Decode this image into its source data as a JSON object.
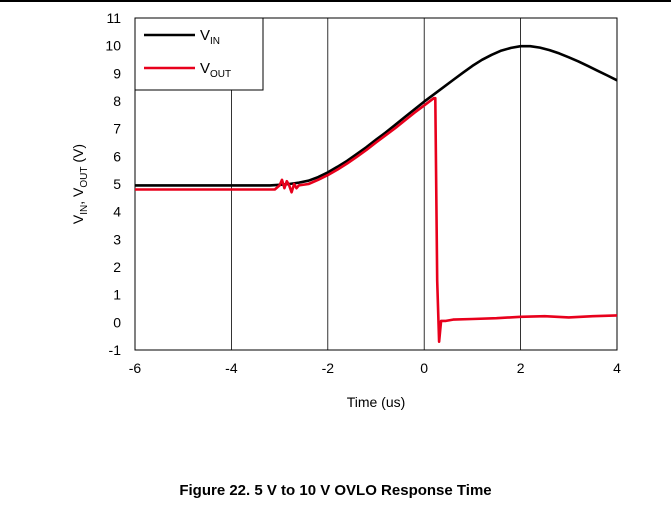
{
  "chart_data": {
    "type": "line",
    "xlabel": "Time (us)",
    "ylabel_parts": [
      {
        "text": "V",
        "sub": false
      },
      {
        "text": "IN",
        "sub": true
      },
      {
        "text": ", V",
        "sub": false
      },
      {
        "text": "OUT",
        "sub": true
      },
      {
        "text": " (V)",
        "sub": false
      }
    ],
    "xlim": [
      -6,
      4
    ],
    "ylim": [
      -1,
      11
    ],
    "xticks": [
      "-6",
      "-4",
      "-2",
      "0",
      "2",
      "4"
    ],
    "yticks": [
      "-1",
      "0",
      "1",
      "2",
      "3",
      "4",
      "5",
      "6",
      "7",
      "8",
      "9",
      "10",
      "11"
    ],
    "grid": "vertical",
    "legend_position": "top-left",
    "series": [
      {
        "name_main": "V",
        "name_sub": "IN",
        "color": "#000000",
        "x": [
          -6,
          -3.2,
          -3.0,
          -2.8,
          -2.6,
          -2.4,
          -2.2,
          -2.0,
          -1.8,
          -1.6,
          -1.4,
          -1.2,
          -1.0,
          -0.8,
          -0.6,
          -0.4,
          -0.2,
          0.0,
          0.2,
          0.4,
          0.6,
          0.8,
          1.0,
          1.2,
          1.4,
          1.6,
          1.8,
          2.0,
          2.2,
          2.4,
          2.6,
          2.8,
          3.0,
          3.2,
          3.4,
          3.6,
          3.8,
          4.0
        ],
        "y": [
          4.95,
          4.95,
          4.97,
          5.0,
          5.05,
          5.12,
          5.25,
          5.42,
          5.62,
          5.84,
          6.08,
          6.33,
          6.6,
          6.86,
          7.14,
          7.42,
          7.7,
          7.98,
          8.24,
          8.5,
          8.76,
          9.02,
          9.27,
          9.49,
          9.67,
          9.82,
          9.92,
          9.98,
          9.98,
          9.93,
          9.84,
          9.72,
          9.58,
          9.43,
          9.26,
          9.09,
          8.92,
          8.75
        ]
      },
      {
        "name_main": "V",
        "name_sub": "OUT",
        "color": "#e8001c",
        "x": [
          -6,
          -3.1,
          -3.0,
          -2.95,
          -2.9,
          -2.85,
          -2.8,
          -2.75,
          -2.7,
          -2.65,
          -2.6,
          -2.4,
          -2.2,
          -2.0,
          -1.8,
          -1.6,
          -1.4,
          -1.2,
          -1.0,
          -0.8,
          -0.6,
          -0.4,
          -0.2,
          0.0,
          0.2,
          0.23,
          0.27,
          0.31,
          0.35,
          0.45,
          0.6,
          1.0,
          1.5,
          2.0,
          2.5,
          3.0,
          3.5,
          4.0
        ],
        "y": [
          4.8,
          4.8,
          4.95,
          5.15,
          4.85,
          5.1,
          4.95,
          4.7,
          5.0,
          4.85,
          4.95,
          5.0,
          5.15,
          5.32,
          5.52,
          5.74,
          5.98,
          6.23,
          6.5,
          6.76,
          7.02,
          7.3,
          7.58,
          7.84,
          8.1,
          8.1,
          1.5,
          -0.7,
          0.05,
          0.05,
          0.1,
          0.12,
          0.15,
          0.2,
          0.22,
          0.18,
          0.22,
          0.25
        ]
      }
    ]
  },
  "caption": "Figure 22. 5 V to 10 V OVLO Response Time"
}
